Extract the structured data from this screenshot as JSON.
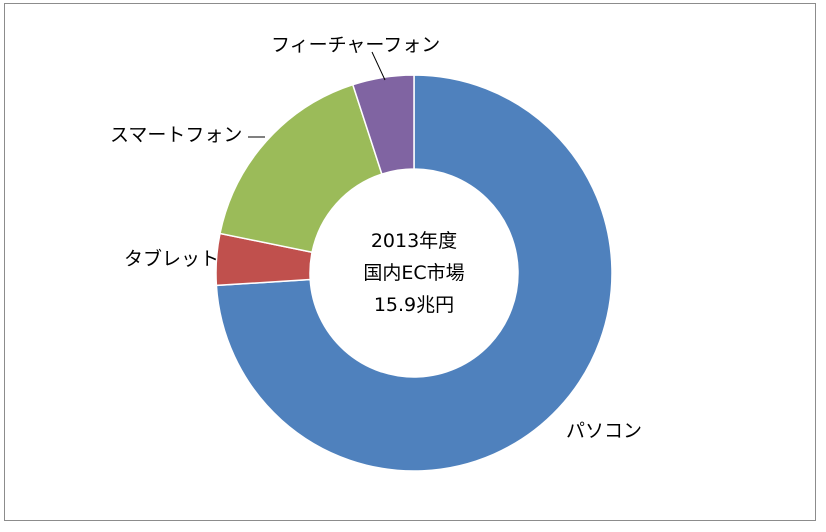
{
  "chart_data": {
    "type": "pie",
    "donut": true,
    "categories": [
      "パソコン",
      "タブレット",
      "スマートフォン",
      "フィーチャーフォン"
    ],
    "values": [
      74.0,
      4.2,
      16.8,
      5.0
    ],
    "colors": [
      "#4f81bd",
      "#c0504d",
      "#9bbb59",
      "#8064a2"
    ],
    "center_text": [
      "2013年度",
      "国内EC市場",
      "15.9兆円"
    ],
    "legend": "none"
  }
}
